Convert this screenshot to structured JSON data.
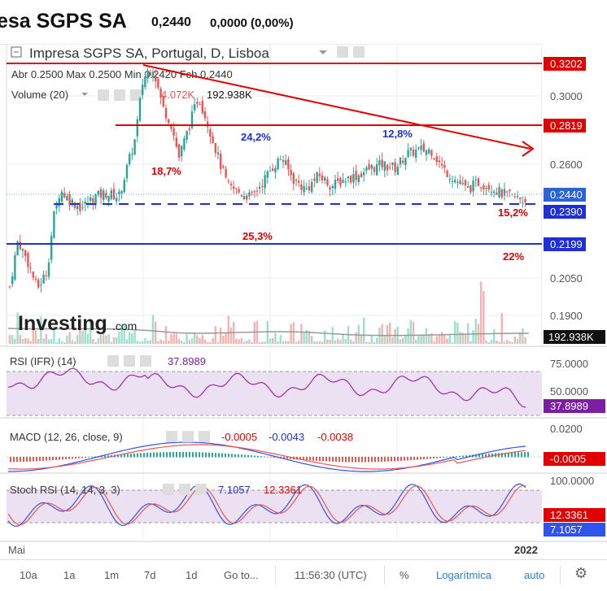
{
  "header": {
    "company": "esa SGPS SA",
    "price": "0,2440",
    "change": "0,0000 (0,00%)"
  },
  "main": {
    "legend_title": "Impresa SGPS SA, Portugal, D, Lisboa",
    "ohlc": "Abr 0.2500  Max 0.2500  Min 0.2420  Fch 0.2440",
    "volume_label": "Volume (20)",
    "volume_ma": "4.072K",
    "volume_value": "192.938K",
    "watermark": "Investing",
    "watermark_suffix": ".com",
    "price_ticks": [
      "0.3000",
      "0.2600",
      "0.2050",
      "0.1900"
    ],
    "volume_tag": "192.938K",
    "annotations": [
      "24,2%",
      "12,8%",
      "18,7%",
      "25,3%",
      "15,2%",
      "22%"
    ],
    "levels": [
      {
        "label": "0.3202",
        "color": "#e00000"
      },
      {
        "label": "0.2819",
        "color": "#e00000"
      },
      {
        "label": "0.2440",
        "color": "#2a64d8"
      },
      {
        "label": "0.2390",
        "color": "#1f2fd6"
      },
      {
        "label": "0.2199",
        "color": "#1f2fd6"
      }
    ]
  },
  "rsi": {
    "title": "RSI (IFR) (14)",
    "value": "37.8989",
    "ticks": [
      "75.0000",
      "50.0000"
    ],
    "tag": "37.8989"
  },
  "macd": {
    "title": "MACD (12, 26, close, 9)",
    "v1": "-0.0005",
    "v2": "-0.0043",
    "v3": "-0.0038",
    "ticks": [
      "0.0200"
    ],
    "tag": "-0.0005"
  },
  "stoch": {
    "title": "Stoch RSI (14, 14, 3, 3)",
    "v1": "7.1057",
    "v2": "12.3361",
    "ticks": [
      "100.0000"
    ],
    "tag_red": "12.3361",
    "tag_blue": "7.1057"
  },
  "xaxis": {
    "start": "Mai",
    "end": "2022"
  },
  "toolbar": {
    "ranges": [
      "10a",
      "1a",
      "1m",
      "7d",
      "1d"
    ],
    "goto": "Go to...",
    "time": "11:56:30 (UTC)",
    "percent": "%",
    "log": "Logarítmica",
    "auto": "auto"
  },
  "colors": {
    "up": "#26a69a",
    "down": "#ef5350",
    "support": "#1f2fd6",
    "resistance": "#e00000"
  }
}
